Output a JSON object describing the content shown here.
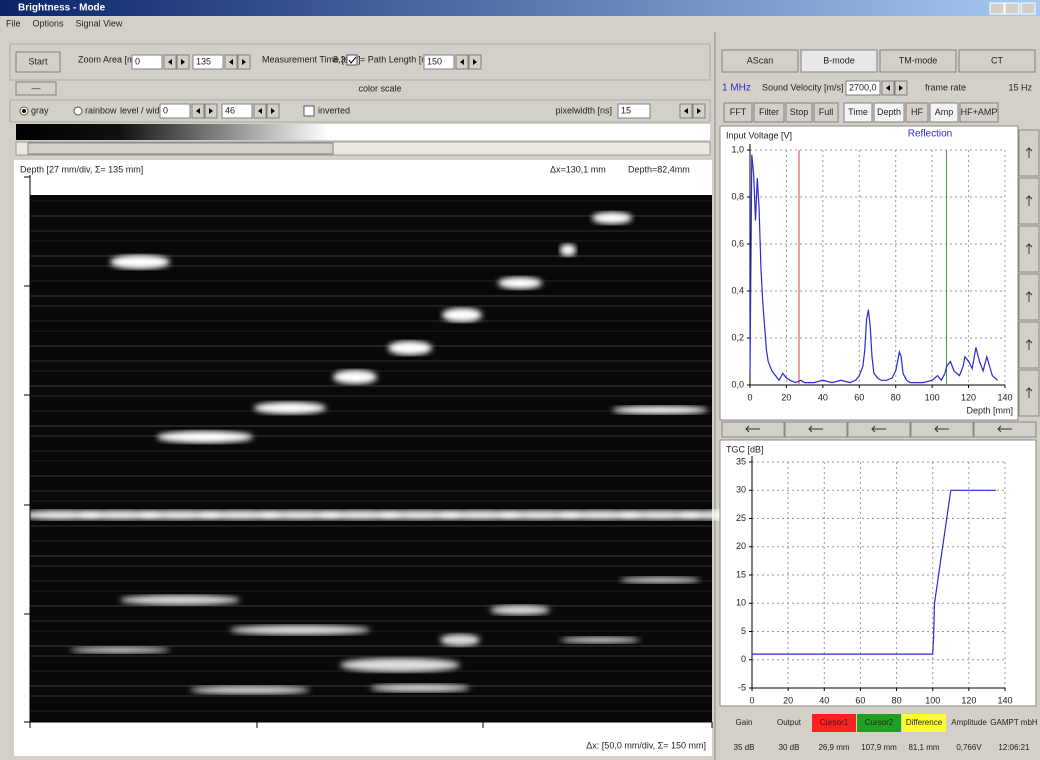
{
  "window": {
    "title": "Brightness - Mode",
    "menu": [
      "File",
      "Options",
      "Signal View"
    ]
  },
  "toolbar": {
    "start": "Start",
    "zoom_label": "Zoom Area [mm]",
    "zoom_from": "0",
    "zoom_to": "135",
    "time_label": "Measurement Time [sec]",
    "time_value": "8,3",
    "path_label": "= Path Length [mm]",
    "path_length": "150",
    "collapse": "—",
    "color_scale": "color scale",
    "gray": "gray",
    "rainbow": "rainbow",
    "level_label": "level / width",
    "level": "0",
    "width": "46",
    "inverted": "inverted",
    "pixelwidth_label": "pixelwidth [ns]",
    "pixelwidth": "15"
  },
  "bscan": {
    "depth_info": "Depth [27 mm/div, Σ= 135 mm]",
    "dx": "Δx=130,1 mm",
    "depth": "Depth=82,4mm",
    "x_info": "Δx: [50,0 mm/div, Σ= 150 mm]"
  },
  "right_panel": {
    "tabs": [
      "AScan",
      "B-mode",
      "TM-mode",
      "CT"
    ],
    "frequency": "1 MHz",
    "velocity_label": "Sound Velocity [m/s]",
    "velocity": "2700,0",
    "frame_rate_label": "frame rate",
    "frame_rate": "15 Hz",
    "buttons": [
      "FFT",
      "Filter",
      "Stop",
      "Full",
      "Time",
      "Depth",
      "HF",
      "Amp",
      "HF+AMP"
    ]
  },
  "chart_data": [
    {
      "type": "line",
      "title": "Reflection",
      "y_label": "Input Voltage [V]",
      "x_label": "Depth [mm]",
      "color": "#2a2ad0",
      "grid": true,
      "xlim": [
        0,
        140
      ],
      "xticks": [
        0,
        20,
        40,
        60,
        80,
        100,
        120,
        140
      ],
      "ylim": [
        0,
        1
      ],
      "yticks": [
        {
          "value": 0,
          "label": "0,0"
        },
        {
          "value": 0.2,
          "label": "0,2"
        },
        {
          "value": 0.4,
          "label": "0,4"
        },
        {
          "value": 0.6,
          "label": "0,6"
        },
        {
          "value": 0.8,
          "label": "0,8"
        },
        {
          "value": 1,
          "label": "1,0"
        }
      ],
      "cursors": [
        {
          "x": 26.9,
          "color": "#e04040"
        },
        {
          "x": 107.9,
          "color": "#30a030"
        }
      ],
      "x": [
        0,
        1,
        2,
        3,
        4,
        5,
        6,
        7,
        8,
        9,
        10,
        12,
        14,
        16,
        18,
        20,
        22,
        25,
        28,
        30,
        35,
        40,
        45,
        50,
        55,
        58,
        60,
        62,
        63,
        64,
        65,
        66,
        67,
        68,
        70,
        72,
        75,
        78,
        80,
        82,
        83,
        84,
        86,
        88,
        90,
        95,
        100,
        103,
        105,
        107,
        108,
        110,
        112,
        115,
        117,
        118,
        120,
        122,
        124,
        126,
        128,
        130,
        133,
        136
      ],
      "values": [
        0.05,
        0.98,
        0.9,
        0.7,
        0.88,
        0.75,
        0.5,
        0.35,
        0.25,
        0.15,
        0.1,
        0.06,
        0.04,
        0.02,
        0.05,
        0.03,
        0.02,
        0.01,
        0.02,
        0.01,
        0.01,
        0.02,
        0.01,
        0.02,
        0.01,
        0.02,
        0.04,
        0.08,
        0.15,
        0.28,
        0.32,
        0.25,
        0.12,
        0.05,
        0.03,
        0.02,
        0.02,
        0.03,
        0.06,
        0.14,
        0.12,
        0.05,
        0.02,
        0.01,
        0.01,
        0.01,
        0.02,
        0.04,
        0.02,
        0.05,
        0.08,
        0.1,
        0.06,
        0.04,
        0.08,
        0.12,
        0.1,
        0.07,
        0.16,
        0.1,
        0.06,
        0.12,
        0.04,
        0.02
      ]
    },
    {
      "type": "line",
      "y_label": "TGC [dB]",
      "color": "#2a2ad0",
      "grid": true,
      "xlim": [
        0,
        140
      ],
      "xticks": [
        0,
        20,
        40,
        60,
        80,
        100,
        120,
        140
      ],
      "ylim": [
        -5,
        35
      ],
      "yticks": [
        -5,
        0,
        5,
        10,
        15,
        20,
        25,
        30,
        35
      ],
      "x": [
        0,
        100,
        100.5,
        101,
        110,
        135
      ],
      "values": [
        1,
        1,
        4,
        10,
        30,
        30
      ]
    }
  ],
  "status_bar": [
    {
      "label": "Gain",
      "value": "35 dB"
    },
    {
      "label": "Output",
      "value": "30 dB"
    },
    {
      "label": "Cursor1",
      "value": "26,9 mm",
      "color": "#ff2020"
    },
    {
      "label": "Cursor2",
      "value": "107,9 mm",
      "color": "#20a020"
    },
    {
      "label": "Difference",
      "value": "81,1 mm",
      "color": "#ffff30"
    },
    {
      "label": "Amplitude",
      "value": "0,766V"
    },
    {
      "label": "GAMPT mbH",
      "value": "12:06:21"
    }
  ]
}
